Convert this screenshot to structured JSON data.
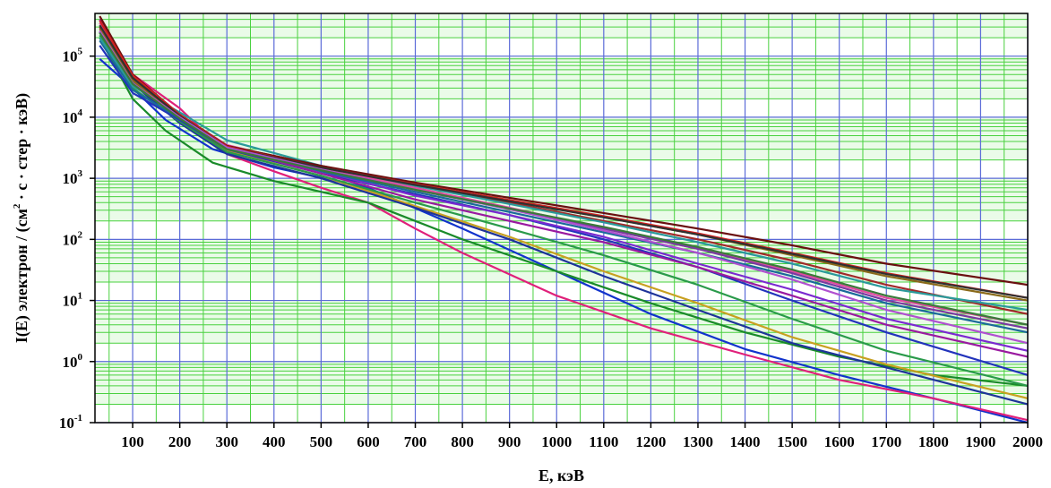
{
  "chart_data": {
    "type": "line",
    "title": "",
    "xlabel": "E, кэВ",
    "ylabel": "I(E) электрон / (см2 · с · стер · кэВ)",
    "ylabel_parts": {
      "pre": "I(E) электрон / (см",
      "sup": "2",
      "post": " · с · стер · кэВ)"
    },
    "xscale": "linear",
    "yscale": "log",
    "xlim": [
      20,
      2000
    ],
    "ylim": [
      0.1,
      500000
    ],
    "grid": true,
    "x_ticks": [
      100,
      200,
      300,
      400,
      500,
      600,
      700,
      800,
      900,
      1000,
      1100,
      1200,
      1300,
      1400,
      1500,
      1600,
      1700,
      1800,
      1900,
      2000
    ],
    "x_tick_labels": [
      "100",
      "200",
      "300",
      "400",
      "500",
      "600",
      "700",
      "800",
      "900",
      "1000",
      "1100",
      "1200",
      "1300",
      "1400",
      "1500",
      "1600",
      "1700",
      "1800",
      "1900",
      "2000"
    ],
    "y_ticks": [
      {
        "value": 0.1,
        "base": "10",
        "exp": "-1"
      },
      {
        "value": 1,
        "base": "10",
        "exp": "0"
      },
      {
        "value": 10,
        "base": "10",
        "exp": "1"
      },
      {
        "value": 100,
        "base": "10",
        "exp": "2"
      },
      {
        "value": 1000,
        "base": "10",
        "exp": "3"
      },
      {
        "value": 10000,
        "base": "10",
        "exp": "4"
      },
      {
        "value": 100000,
        "base": "10",
        "exp": "5"
      }
    ],
    "colors": {
      "major_grid": "#5b6bd8",
      "minor_grid": "#49d13f",
      "band_fill": "#eafbe8",
      "axis": "#000000"
    },
    "series": [
      {
        "color": "#1133cc",
        "x": [
          30,
          100,
          170,
          270,
          400,
          600,
          800,
          1000,
          1200,
          1400,
          1600,
          1800,
          2000
        ],
        "y": [
          90000,
          30000,
          9000,
          3000,
          1500,
          700,
          150,
          30,
          6,
          1.6,
          0.6,
          0.25,
          0.1
        ]
      },
      {
        "color": "#e0207a",
        "x": [
          30,
          100,
          200,
          300,
          400,
          500,
          600,
          700,
          800,
          1000,
          1200,
          1400,
          1600,
          1800,
          2000
        ],
        "y": [
          350000,
          50000,
          14000,
          2500,
          1300,
          700,
          400,
          150,
          60,
          12,
          3.5,
          1.3,
          0.5,
          0.25,
          0.11
        ]
      },
      {
        "color": "#1a8a2a",
        "x": [
          30,
          100,
          170,
          270,
          400,
          600,
          700,
          800,
          1000,
          1200,
          1400,
          1600,
          1800,
          2000
        ],
        "y": [
          200000,
          20000,
          6000,
          1800,
          900,
          400,
          200,
          100,
          30,
          9,
          3,
          1.2,
          0.6,
          0.4
        ]
      },
      {
        "color": "#c8a020",
        "x": [
          30,
          100,
          200,
          300,
          500,
          700,
          900,
          1100,
          1300,
          1500,
          1700,
          2000
        ],
        "y": [
          300000,
          40000,
          9000,
          2800,
          1100,
          350,
          110,
          30,
          9,
          2.5,
          0.9,
          0.25
        ]
      },
      {
        "color": "#1e3399",
        "x": [
          30,
          100,
          200,
          300,
          500,
          700,
          900,
          1100,
          1300,
          1500,
          1700,
          2000
        ],
        "y": [
          250000,
          35000,
          8000,
          2500,
          1000,
          330,
          100,
          25,
          7,
          2,
          0.8,
          0.2
        ]
      },
      {
        "color": "#2a9a4a",
        "x": [
          30,
          100,
          200,
          300,
          500,
          700,
          900,
          1100,
          1300,
          1500,
          1700,
          2000
        ],
        "y": [
          220000,
          30000,
          8500,
          2700,
          1100,
          400,
          150,
          55,
          18,
          5,
          1.5,
          0.4
        ]
      },
      {
        "color": "#2233bb",
        "x": [
          30,
          100,
          200,
          300,
          500,
          700,
          900,
          1100,
          1300,
          1500,
          1700,
          2000
        ],
        "y": [
          150000,
          25000,
          9000,
          3000,
          1200,
          550,
          250,
          100,
          35,
          10,
          3,
          0.6
        ]
      },
      {
        "color": "#9a1aa0",
        "x": [
          30,
          100,
          200,
          300,
          500,
          700,
          900,
          1100,
          1300,
          1500,
          1700,
          2000
        ],
        "y": [
          400000,
          45000,
          10000,
          3200,
          1200,
          450,
          200,
          90,
          35,
          12,
          4,
          1.2
        ]
      },
      {
        "color": "#7a2ad0",
        "x": [
          30,
          100,
          200,
          300,
          500,
          700,
          900,
          1100,
          1300,
          1500,
          1700,
          2000
        ],
        "y": [
          300000,
          40000,
          11000,
          3300,
          1300,
          520,
          250,
          110,
          40,
          15,
          5,
          1.5
        ]
      },
      {
        "color": "#1a6a9a",
        "x": [
          30,
          100,
          200,
          300,
          500,
          700,
          900,
          1100,
          1300,
          1500,
          1700,
          2000
        ],
        "y": [
          180000,
          28000,
          9500,
          3400,
          1300,
          600,
          280,
          130,
          60,
          25,
          9,
          3
        ]
      },
      {
        "color": "#e04aa0",
        "x": [
          30,
          100,
          200,
          300,
          500,
          700,
          900,
          1100,
          1300,
          1500,
          1700,
          2000
        ],
        "y": [
          350000,
          45000,
          11000,
          3500,
          1500,
          700,
          330,
          150,
          70,
          30,
          11,
          4
        ]
      },
      {
        "color": "#7a3aa0",
        "x": [
          30,
          100,
          200,
          300,
          500,
          700,
          900,
          1100,
          1300,
          1500,
          1700,
          2000
        ],
        "y": [
          250000,
          38000,
          10000,
          3300,
          1400,
          650,
          320,
          150,
          70,
          28,
          10,
          3.5
        ]
      },
      {
        "color": "#a02a2a",
        "x": [
          30,
          100,
          200,
          300,
          500,
          700,
          900,
          1100,
          1300,
          1500,
          1700,
          2000
        ],
        "y": [
          300000,
          42000,
          11000,
          3400,
          1600,
          780,
          400,
          200,
          100,
          45,
          18,
          6
        ]
      },
      {
        "color": "#2a9a9a",
        "x": [
          30,
          100,
          200,
          300,
          500,
          700,
          900,
          1100,
          1300,
          1500,
          1700,
          2000
        ],
        "y": [
          200000,
          32000,
          12000,
          4200,
          1600,
          750,
          380,
          190,
          90,
          40,
          16,
          7
        ]
      },
      {
        "color": "#8a6a1a",
        "x": [
          30,
          100,
          200,
          300,
          500,
          700,
          900,
          1100,
          1300,
          1500,
          1700,
          2000
        ],
        "y": [
          280000,
          40000,
          10000,
          3200,
          1500,
          800,
          430,
          230,
          120,
          55,
          25,
          10
        ]
      },
      {
        "color": "#6a1010",
        "x": [
          30,
          100,
          200,
          300,
          500,
          700,
          900,
          1100,
          1300,
          1500,
          1700,
          2000
        ],
        "y": [
          450000,
          50000,
          11000,
          3400,
          1600,
          850,
          480,
          270,
          150,
          80,
          40,
          18
        ]
      },
      {
        "color": "#d02020",
        "x": [
          30,
          100,
          200,
          300,
          500,
          700,
          900,
          1100,
          1300,
          1500,
          1700,
          2000
        ],
        "y": [
          380000,
          48000,
          11000,
          3300,
          1500,
          800,
          440,
          240,
          125,
          60,
          28,
          11
        ]
      },
      {
        "color": "#303030",
        "x": [
          30,
          100,
          200,
          300,
          500,
          700,
          900,
          1100,
          1300,
          1500,
          1700,
          2000
        ],
        "y": [
          320000,
          44000,
          10500,
          3200,
          1500,
          780,
          420,
          230,
          120,
          58,
          27,
          11
        ]
      },
      {
        "color": "#b050d0",
        "x": [
          30,
          100,
          200,
          300,
          500,
          700,
          900,
          1100,
          1300,
          1500,
          1700,
          2000
        ],
        "y": [
          260000,
          36000,
          10000,
          3200,
          1400,
          650,
          310,
          140,
          60,
          22,
          7,
          2
        ]
      },
      {
        "color": "#3a7a3a",
        "x": [
          30,
          100,
          200,
          300,
          500,
          700,
          900,
          1100,
          1300,
          1500,
          1700,
          2000
        ],
        "y": [
          240000,
          35000,
          9500,
          3000,
          1350,
          650,
          320,
          160,
          75,
          32,
          12,
          4
        ]
      }
    ]
  }
}
